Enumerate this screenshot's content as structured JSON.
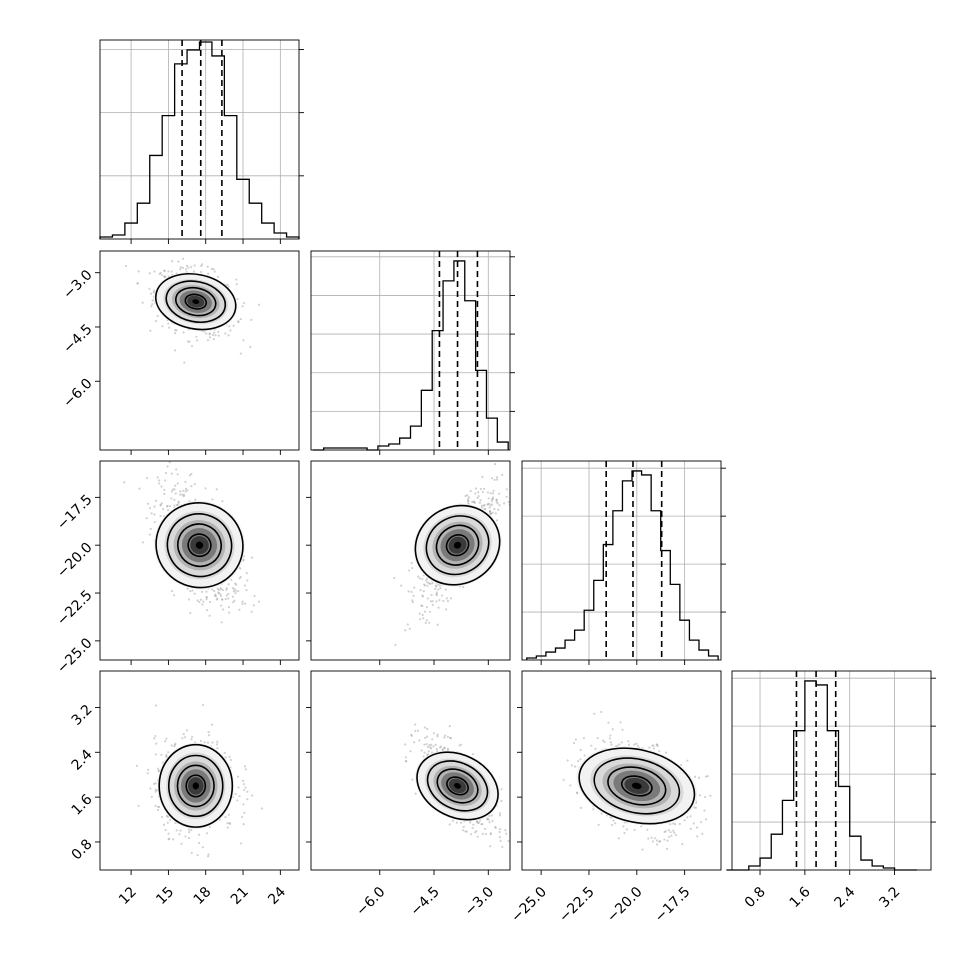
{
  "figure": {
    "type": "corner-plot"
  },
  "chart_data": [
    {
      "type": "histogram",
      "panel": "hist-0",
      "x": [
        10.0,
        11.0,
        12.0,
        13.0,
        14.0,
        15.0,
        16.0,
        17.0,
        18.0,
        19.0,
        20.0,
        21.0,
        22.0,
        23.0,
        24.0,
        25.0
      ],
      "values": [
        0.01,
        0.02,
        0.08,
        0.18,
        0.42,
        0.62,
        0.88,
        0.95,
        0.99,
        0.92,
        0.62,
        0.3,
        0.18,
        0.08,
        0.03,
        0.01
      ],
      "xlim": [
        9.5,
        25.5
      ],
      "quantiles": [
        16.1,
        17.6,
        19.3
      ],
      "xticks": [
        "12",
        "15",
        "18",
        "21",
        "24"
      ],
      "yticks_unlabeled": 3,
      "grid": true
    },
    {
      "type": "histogram",
      "panel": "hist-1",
      "x": [
        -7.7,
        -7.4,
        -7.1,
        -6.8,
        -6.5,
        -6.2,
        -5.9,
        -5.6,
        -5.3,
        -5.0,
        -4.7,
        -4.4,
        -4.1,
        -3.8,
        -3.5,
        -3.2,
        -2.9,
        -2.6
      ],
      "values": [
        0.0,
        0.01,
        0.01,
        0.01,
        0.01,
        0.0,
        0.02,
        0.03,
        0.06,
        0.12,
        0.3,
        0.6,
        0.85,
        0.95,
        0.75,
        0.4,
        0.16,
        0.04
      ],
      "xlim": [
        -7.9,
        -2.4
      ],
      "quantiles": [
        -4.35,
        -3.85,
        -3.3
      ],
      "xticks": [
        "-6.0",
        "-4.5",
        "-3.0"
      ],
      "yticks_unlabeled": 5,
      "grid": true
    },
    {
      "type": "histogram",
      "panel": "hist-2",
      "x": [
        -25.5,
        -25.0,
        -24.5,
        -24.0,
        -23.5,
        -23.0,
        -22.5,
        -22.0,
        -21.5,
        -21.0,
        -20.5,
        -20.0,
        -19.5,
        -19.0,
        -18.5,
        -18.0,
        -17.5,
        -17.0,
        -16.5,
        -16.0
      ],
      "values": [
        0.01,
        0.02,
        0.04,
        0.06,
        0.1,
        0.15,
        0.25,
        0.4,
        0.58,
        0.75,
        0.9,
        0.95,
        0.93,
        0.75,
        0.55,
        0.38,
        0.2,
        0.1,
        0.05,
        0.02
      ],
      "xlim": [
        -26.0,
        -15.6
      ],
      "quantiles": [
        -21.6,
        -20.2,
        -18.7
      ],
      "xticks": [
        "-25.0",
        "-22.5",
        "-20.0",
        "-17.5"
      ],
      "yticks_unlabeled": 4,
      "grid": true
    },
    {
      "type": "histogram",
      "panel": "hist-3",
      "x": [
        0.3,
        0.5,
        0.7,
        0.9,
        1.1,
        1.3,
        1.5,
        1.7,
        1.9,
        2.1,
        2.3,
        2.5,
        2.7,
        2.9,
        3.1,
        3.3,
        3.5
      ],
      "values": [
        0.0,
        0.0,
        0.02,
        0.06,
        0.18,
        0.35,
        0.7,
        0.95,
        0.93,
        0.7,
        0.42,
        0.17,
        0.05,
        0.02,
        0.01,
        0.0,
        0.0
      ],
      "xlim": [
        0.3,
        3.85
      ],
      "quantiles": [
        1.45,
        1.8,
        2.15
      ],
      "xticks": [
        "0.8",
        "1.6",
        "2.4",
        "3.2"
      ],
      "yticks_unlabeled": 4,
      "grid": true
    },
    {
      "type": "heatmap",
      "panel": "pair-1-0",
      "x_center": 17.2,
      "y_center": -3.8,
      "x_sd": 1.4,
      "y_sd": 0.4,
      "correlation": -0.3,
      "xlim": [
        9.5,
        25.5
      ],
      "ylim": [
        -7.9,
        -2.4
      ],
      "yticks": [
        "-3.0",
        "-4.5",
        "-6.0"
      ]
    },
    {
      "type": "heatmap",
      "panel": "pair-2-0",
      "x_center": 17.5,
      "y_center": -20.0,
      "x_sd": 1.4,
      "y_sd": 1.3,
      "correlation": -0.55,
      "xlim": [
        9.5,
        25.5
      ],
      "ylim": [
        -26.0,
        -15.6
      ],
      "yticks": [
        "-17.5",
        "-20.0",
        "-22.5",
        "-25.0"
      ]
    },
    {
      "type": "heatmap",
      "panel": "pair-2-1",
      "x_center": -3.85,
      "y_center": -20.0,
      "x_sd": 0.45,
      "y_sd": 1.3,
      "correlation": 0.75,
      "xlim": [
        -7.9,
        -2.4
      ],
      "ylim": [
        -26.0,
        -15.6
      ]
    },
    {
      "type": "heatmap",
      "panel": "pair-3-0",
      "x_center": 17.2,
      "y_center": 1.8,
      "x_sd": 1.4,
      "y_sd": 0.35,
      "correlation": 0.0,
      "xlim": [
        9.5,
        25.5
      ],
      "ylim": [
        0.3,
        3.85
      ],
      "yticks": [
        "3.2",
        "2.4",
        "1.6",
        "0.8"
      ]
    },
    {
      "type": "heatmap",
      "panel": "pair-3-1",
      "x_center": -3.85,
      "y_center": 1.8,
      "x_sd": 0.45,
      "y_sd": 0.35,
      "correlation": -0.7,
      "xlim": [
        -7.9,
        -2.4
      ],
      "ylim": [
        0.3,
        3.85
      ]
    },
    {
      "type": "heatmap",
      "panel": "pair-3-2",
      "x_center": -20.0,
      "y_center": 1.8,
      "x_sd": 1.3,
      "y_sd": 0.35,
      "correlation": -0.35,
      "xlim": [
        -26.0,
        -15.6
      ],
      "ylim": [
        0.3,
        3.85
      ]
    }
  ]
}
